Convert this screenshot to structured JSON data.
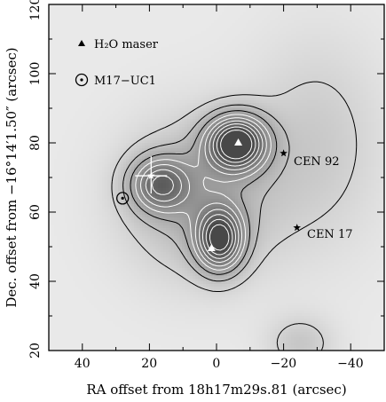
{
  "chart_data": {
    "type": "contour",
    "xlabel": "RA offset from 18h17m29s.81 (arcsec)",
    "ylabel": "Dec. offset from −16°14′1.50″ (arcsec)",
    "xlim": [
      50,
      -50
    ],
    "ylim": [
      20,
      120
    ],
    "x_ticks": [
      40,
      20,
      0,
      -20,
      -40
    ],
    "y_ticks": [
      20,
      40,
      60,
      80,
      100,
      120
    ],
    "x_tick_labels": [
      "40",
      "20",
      "0",
      "−20",
      "−40"
    ],
    "y_tick_labels": [
      "20",
      "40",
      "60",
      "80",
      "100",
      "120"
    ],
    "colormap": "grayscale",
    "legend": [
      {
        "symbol": "filled-triangle",
        "label": "H₂O maser"
      },
      {
        "symbol": "circled-dot",
        "label": "M17−UC1"
      }
    ],
    "peaks": [
      {
        "x": -6,
        "y": 80,
        "strength": 1.0
      },
      {
        "x": -1,
        "y": 52,
        "strength": 0.85
      },
      {
        "x": 17,
        "y": 68,
        "strength": 0.58
      }
    ],
    "h2o_masers": [
      {
        "x": -6.5,
        "y": 80
      },
      {
        "x": 1.5,
        "y": 49.5
      }
    ],
    "uc_hii": {
      "x": 28,
      "y": 64
    },
    "stars": [
      {
        "x": 19.5,
        "y": 70.5,
        "label": ""
      },
      {
        "x": -20,
        "y": 77,
        "label": "CEN 92"
      },
      {
        "x": -24,
        "y": 55.5,
        "label": "CEN 17"
      }
    ]
  }
}
